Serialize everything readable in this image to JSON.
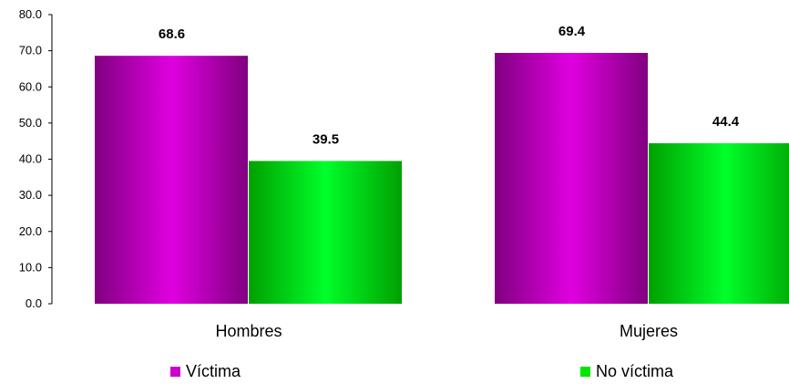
{
  "chart_data": {
    "type": "bar",
    "title": "",
    "xlabel": "",
    "ylabel": "",
    "categories": [
      "Hombres",
      "Mujeres"
    ],
    "series": [
      {
        "name": "Víctima",
        "values": [
          68.6,
          69.4
        ],
        "color": "#cc00cc"
      },
      {
        "name": "No víctima",
        "values": [
          39.5,
          44.4
        ],
        "color": "#00e600"
      }
    ],
    "ylim": [
      0,
      80
    ],
    "yticks": [
      "0.0",
      "10.0",
      "20.0",
      "30.0",
      "40.0",
      "50.0",
      "60.0",
      "70.0",
      "80.0"
    ],
    "grid": false,
    "legend_position": "bottom"
  }
}
